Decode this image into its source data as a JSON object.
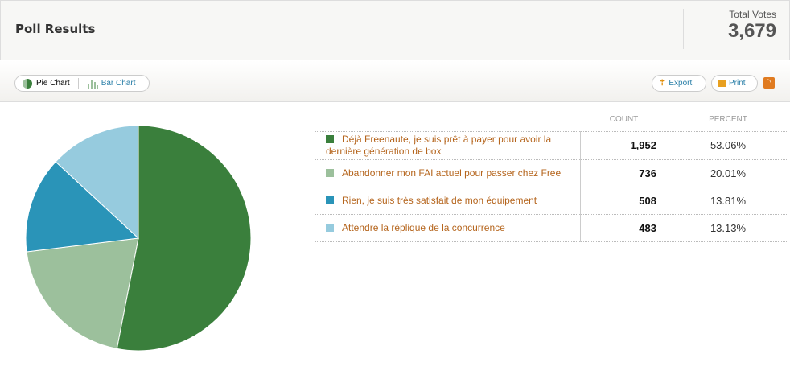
{
  "header": {
    "title": "Poll Results",
    "total_label": "Total Votes",
    "total": "3,679"
  },
  "toolbar": {
    "pie": "Pie Chart",
    "bar": "Bar Chart",
    "export": "Export",
    "print": "Print"
  },
  "table": {
    "headers": [
      "COUNT",
      "PERCENT"
    ]
  },
  "chart_data": {
    "type": "pie",
    "categories": [
      "Déjà Freenaute, je suis prêt à payer pour avoir la dernière génération de box",
      "Abandonner mon FAI actuel pour passer chez Free",
      "Rien, je suis très satisfait de mon équipement",
      "Attendre la réplique de la concurrence"
    ],
    "values": [
      1952,
      736,
      508,
      483
    ],
    "percents": [
      "53.06%",
      "20.01%",
      "13.81%",
      "13.13%"
    ],
    "counts": [
      "1,952",
      "736",
      "508",
      "483"
    ],
    "colors": [
      "#3a7f3c",
      "#9cc09c",
      "#2a94b8",
      "#96cbde"
    ]
  }
}
